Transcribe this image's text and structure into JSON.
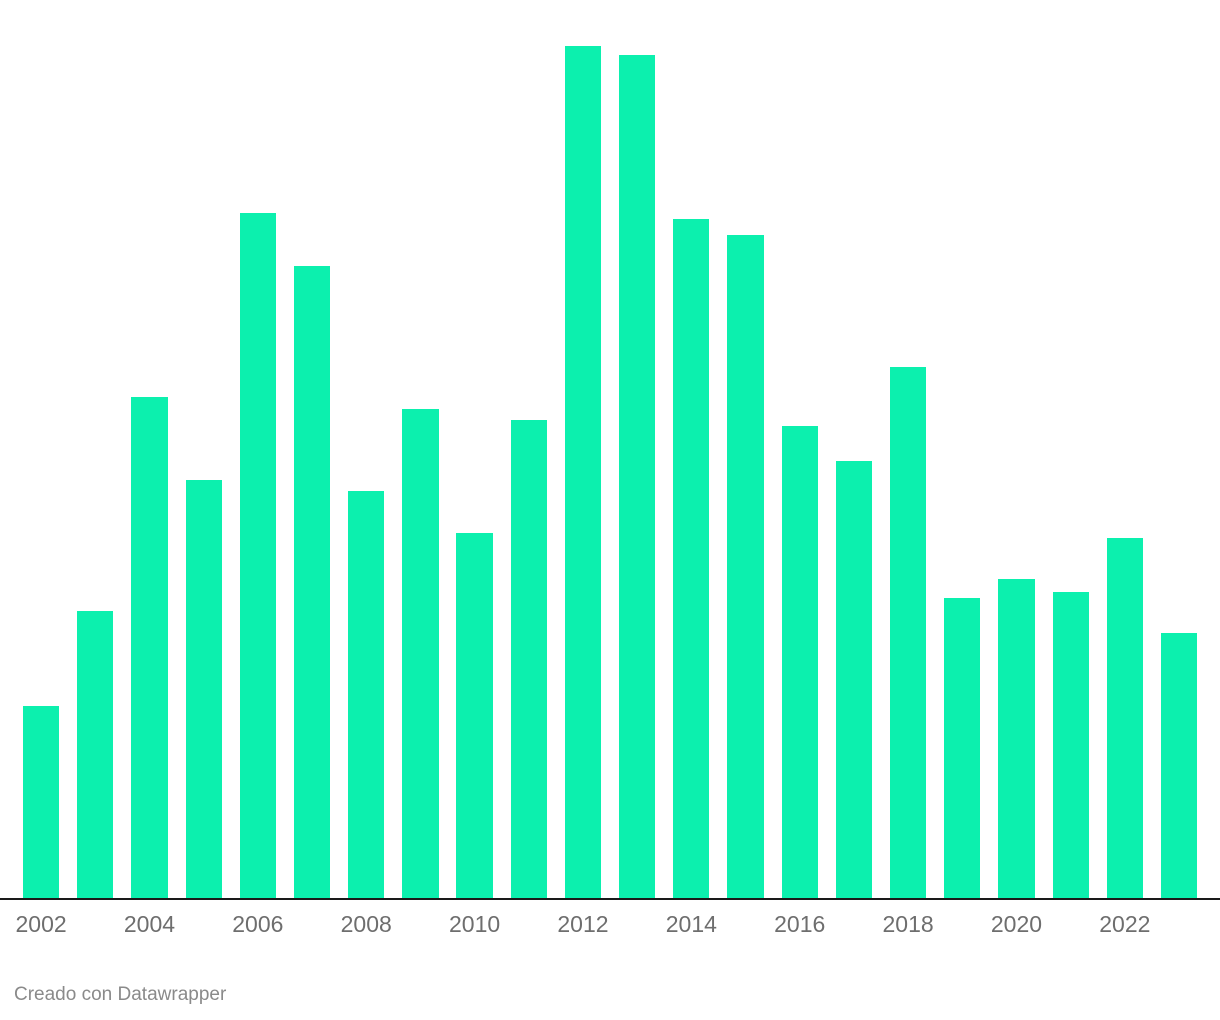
{
  "page": {
    "background": "#ffffff"
  },
  "chart_data": {
    "type": "bar",
    "title": "",
    "xlabel": "",
    "ylabel": "",
    "ylim": [
      0,
      100
    ],
    "grid": false,
    "legend": false,
    "bar_color": "#0cf0ae",
    "axis_line_color": "#1a1a1a",
    "tick_label_color": "#6e6e6e",
    "categories": [
      "2002",
      "2003",
      "2004",
      "2005",
      "2006",
      "2007",
      "2008",
      "2009",
      "2010",
      "2011",
      "2012",
      "2013",
      "2014",
      "2015",
      "2016",
      "2017",
      "2018",
      "2019",
      "2020",
      "2021",
      "2022",
      "2023"
    ],
    "values": [
      22.5,
      33.7,
      58.8,
      49.1,
      80.4,
      74.2,
      47.8,
      57.4,
      42.9,
      56.1,
      100,
      98.9,
      79.7,
      77.8,
      55.4,
      51.3,
      62.3,
      35.2,
      37.4,
      35.9,
      42.2,
      31.1
    ],
    "x_tick_labels": [
      "2002",
      "2004",
      "2006",
      "2008",
      "2010",
      "2012",
      "2014",
      "2016",
      "2018",
      "2020",
      "2022"
    ]
  },
  "footer": {
    "attribution": "Creado con Datawrapper"
  }
}
